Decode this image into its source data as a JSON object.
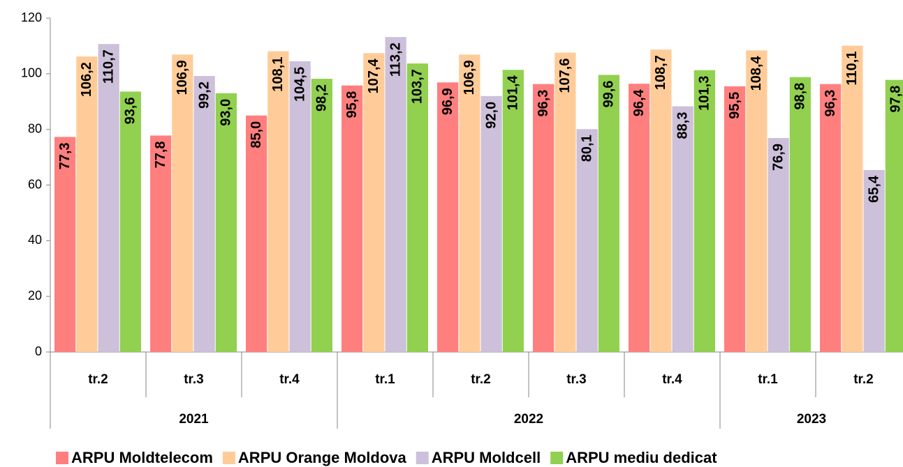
{
  "chart_data": {
    "type": "bar",
    "categories": [
      "tr.2",
      "tr.3",
      "tr.4",
      "tr.1",
      "tr.2",
      "tr.3",
      "tr.4",
      "tr.1",
      "tr.2"
    ],
    "category_groups": [
      {
        "label": "2021",
        "count": 3
      },
      {
        "label": "2022",
        "count": 4
      },
      {
        "label": "2023",
        "count": 2
      }
    ],
    "series": [
      {
        "name": "ARPU Moldtelecom",
        "color": "#ff7f7f",
        "values": [
          77.3,
          77.8,
          85.0,
          95.8,
          96.9,
          96.3,
          96.4,
          95.5,
          96.3
        ],
        "value_labels": [
          "77,3",
          "77,8",
          "85,0",
          "95,8",
          "96,9",
          "96,3",
          "96,4",
          "95,5",
          "96,3"
        ]
      },
      {
        "name": "ARPU Orange Moldova",
        "color": "#ffcc99",
        "values": [
          106.2,
          106.9,
          108.1,
          107.4,
          106.9,
          107.6,
          108.7,
          108.4,
          110.1
        ],
        "value_labels": [
          "106,2",
          "106,9",
          "108,1",
          "107,4",
          "106,9",
          "107,6",
          "108,7",
          "108,4",
          "110,1"
        ]
      },
      {
        "name": "ARPU Moldcell",
        "color": "#ccc0da",
        "values": [
          110.7,
          99.2,
          104.5,
          113.2,
          92.0,
          80.1,
          88.3,
          76.9,
          65.4
        ],
        "value_labels": [
          "110,7",
          "99,2",
          "104,5",
          "113,2",
          "92,0",
          "80,1",
          "88,3",
          "76,9",
          "65,4"
        ]
      },
      {
        "name": "ARPU mediu dedicat",
        "color": "#92d050",
        "values": [
          93.6,
          93.0,
          98.2,
          103.7,
          101.4,
          99.6,
          101.3,
          98.8,
          97.8
        ],
        "value_labels": [
          "93,6",
          "93,0",
          "98,2",
          "103,7",
          "101,4",
          "99,6",
          "101,3",
          "98,8",
          "97,8"
        ]
      }
    ],
    "ylim": [
      0,
      120
    ],
    "yticks": [
      0,
      20,
      40,
      60,
      80,
      100,
      120
    ],
    "grid": false,
    "legend": "bottom"
  }
}
